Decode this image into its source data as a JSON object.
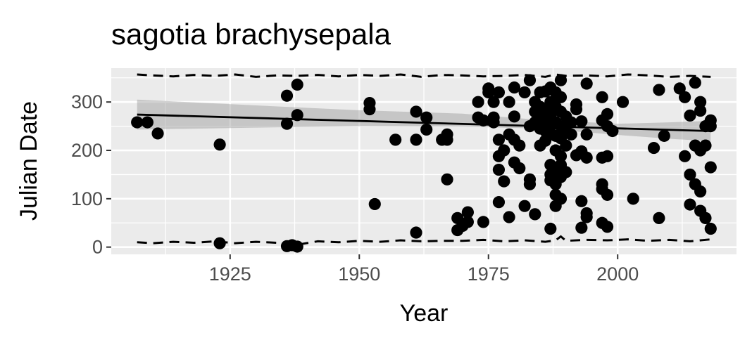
{
  "chart_data": {
    "type": "scatter",
    "title": "sagotia brachysepala",
    "xlabel": "Year",
    "ylabel": "Julian Date",
    "xlim": [
      1902,
      2023
    ],
    "ylim": [
      -15,
      370
    ],
    "x_ticks": [
      1925,
      1950,
      1975,
      2000
    ],
    "y_ticks": [
      0,
      100,
      200,
      300
    ],
    "grid": true,
    "legend": "none",
    "colors": {
      "panel": "#ebebeb",
      "grid": "#ffffff",
      "points": "#000000",
      "trend": "#000000",
      "ribbon": "#999999"
    },
    "points": [
      [
        1907,
        258
      ],
      [
        1909,
        258
      ],
      [
        1911,
        235
      ],
      [
        1923,
        212
      ],
      [
        1923,
        8
      ],
      [
        1936,
        313
      ],
      [
        1936,
        255
      ],
      [
        1938,
        336
      ],
      [
        1938,
        273
      ],
      [
        1936,
        2
      ],
      [
        1937,
        4
      ],
      [
        1938,
        1
      ],
      [
        1952,
        298
      ],
      [
        1952,
        285
      ],
      [
        1953,
        89
      ],
      [
        1957,
        222
      ],
      [
        1961,
        280
      ],
      [
        1961,
        222
      ],
      [
        1961,
        30
      ],
      [
        1963,
        268
      ],
      [
        1963,
        243
      ],
      [
        1966,
        222
      ],
      [
        1967,
        233
      ],
      [
        1967,
        222
      ],
      [
        1967,
        140
      ],
      [
        1969,
        60
      ],
      [
        1969,
        35
      ],
      [
        1970,
        44
      ],
      [
        1971,
        72
      ],
      [
        1971,
        52
      ],
      [
        1973,
        300
      ],
      [
        1973,
        268
      ],
      [
        1974,
        262
      ],
      [
        1974,
        52
      ],
      [
        1975,
        328
      ],
      [
        1975,
        320
      ],
      [
        1976,
        300
      ],
      [
        1976,
        268
      ],
      [
        1976,
        258
      ],
      [
        1977,
        320
      ],
      [
        1977,
        222
      ],
      [
        1977,
        188
      ],
      [
        1977,
        160
      ],
      [
        1977,
        93
      ],
      [
        1978,
        136
      ],
      [
        1978,
        200
      ],
      [
        1979,
        300
      ],
      [
        1979,
        233
      ],
      [
        1979,
        62
      ],
      [
        1980,
        330
      ],
      [
        1980,
        270
      ],
      [
        1980,
        222
      ],
      [
        1980,
        175
      ],
      [
        1981,
        210
      ],
      [
        1981,
        163
      ],
      [
        1982,
        320
      ],
      [
        1982,
        85
      ],
      [
        1983,
        345
      ],
      [
        1983,
        250
      ],
      [
        1983,
        140
      ],
      [
        1983,
        130
      ],
      [
        1984,
        300
      ],
      [
        1984,
        280
      ],
      [
        1984,
        258
      ],
      [
        1984,
        68
      ],
      [
        1985,
        320
      ],
      [
        1985,
        290
      ],
      [
        1985,
        262
      ],
      [
        1985,
        245
      ],
      [
        1985,
        210
      ],
      [
        1986,
        322
      ],
      [
        1986,
        280
      ],
      [
        1986,
        258
      ],
      [
        1986,
        240
      ],
      [
        1986,
        220
      ],
      [
        1987,
        330
      ],
      [
        1987,
        300
      ],
      [
        1987,
        270
      ],
      [
        1987,
        250
      ],
      [
        1987,
        233
      ],
      [
        1987,
        170
      ],
      [
        1987,
        150
      ],
      [
        1987,
        138
      ],
      [
        1987,
        38
      ],
      [
        1988,
        320
      ],
      [
        1988,
        290
      ],
      [
        1988,
        258
      ],
      [
        1988,
        230
      ],
      [
        1988,
        200
      ],
      [
        1988,
        160
      ],
      [
        1988,
        130
      ],
      [
        1988,
        108
      ],
      [
        1988,
        85
      ],
      [
        1989,
        345
      ],
      [
        1989,
        310
      ],
      [
        1989,
        280
      ],
      [
        1989,
        250
      ],
      [
        1989,
        225
      ],
      [
        1989,
        188
      ],
      [
        1989,
        170
      ],
      [
        1989,
        145
      ],
      [
        1989,
        100
      ],
      [
        1990,
        270
      ],
      [
        1990,
        240
      ],
      [
        1990,
        210
      ],
      [
        1990,
        155
      ],
      [
        1991,
        258
      ],
      [
        1991,
        233
      ],
      [
        1992,
        295
      ],
      [
        1992,
        285
      ],
      [
        1992,
        190
      ],
      [
        1993,
        260
      ],
      [
        1993,
        198
      ],
      [
        1993,
        95
      ],
      [
        1993,
        40
      ],
      [
        1994,
        338
      ],
      [
        1994,
        233
      ],
      [
        1994,
        185
      ],
      [
        1994,
        70
      ],
      [
        1994,
        62
      ],
      [
        1997,
        310
      ],
      [
        1997,
        262
      ],
      [
        1997,
        185
      ],
      [
        1997,
        130
      ],
      [
        1997,
        120
      ],
      [
        1997,
        50
      ],
      [
        1998,
        275
      ],
      [
        1998,
        250
      ],
      [
        1998,
        188
      ],
      [
        1998,
        108
      ],
      [
        1998,
        42
      ],
      [
        1999,
        240
      ],
      [
        2001,
        300
      ],
      [
        2003,
        100
      ],
      [
        2007,
        205
      ],
      [
        2008,
        325
      ],
      [
        2008,
        60
      ],
      [
        2009,
        230
      ],
      [
        2012,
        328
      ],
      [
        2013,
        310
      ],
      [
        2013,
        188
      ],
      [
        2014,
        272
      ],
      [
        2014,
        150
      ],
      [
        2014,
        88
      ],
      [
        2015,
        340
      ],
      [
        2015,
        210
      ],
      [
        2015,
        130
      ],
      [
        2016,
        300
      ],
      [
        2016,
        282
      ],
      [
        2016,
        200
      ],
      [
        2016,
        115
      ],
      [
        2016,
        75
      ],
      [
        2017,
        250
      ],
      [
        2017,
        210
      ],
      [
        2017,
        60
      ],
      [
        2018,
        262
      ],
      [
        2018,
        250
      ],
      [
        2018,
        165
      ],
      [
        2018,
        38
      ]
    ],
    "trend_line": {
      "x": [
        1907,
        2018
      ],
      "y": [
        274,
        240
      ]
    },
    "confidence_band": {
      "x": [
        1907,
        1930,
        1950,
        1970,
        1985,
        2000,
        2010,
        2018
      ],
      "upper": [
        305,
        293,
        283,
        276,
        263,
        255,
        258,
        261
      ],
      "lower": [
        243,
        247,
        250,
        249,
        245,
        232,
        224,
        219
      ]
    },
    "quantile_lines": {
      "upper": {
        "x": [
          1907,
          1910,
          1914,
          1918,
          1922,
          1926,
          1930,
          1934,
          1938,
          1942,
          1946,
          1950,
          1954,
          1958,
          1962,
          1966,
          1970,
          1974,
          1978,
          1982,
          1986,
          1988,
          1990,
          1994,
          1998,
          2002,
          2006,
          2010,
          2014,
          2018
        ],
        "y": [
          357,
          355,
          353,
          356,
          354,
          357,
          352,
          355,
          354,
          356,
          353,
          356,
          354,
          357,
          352,
          356,
          355,
          353,
          354,
          356,
          352,
          357,
          354,
          355,
          353,
          357,
          355,
          352,
          354,
          352
        ]
      },
      "lower": {
        "x": [
          1907,
          1910,
          1914,
          1918,
          1922,
          1926,
          1930,
          1934,
          1938,
          1942,
          1946,
          1950,
          1954,
          1958,
          1962,
          1966,
          1970,
          1974,
          1978,
          1982,
          1986,
          1988,
          1989,
          1990,
          1994,
          1998,
          2002,
          2006,
          2010,
          2014,
          2018
        ],
        "y": [
          10,
          8,
          11,
          9,
          12,
          8,
          11,
          9,
          5,
          12,
          10,
          13,
          11,
          14,
          12,
          13,
          13,
          15,
          12,
          14,
          11,
          14,
          22,
          13,
          15,
          14,
          16,
          13,
          15,
          12,
          16
        ]
      }
    }
  }
}
